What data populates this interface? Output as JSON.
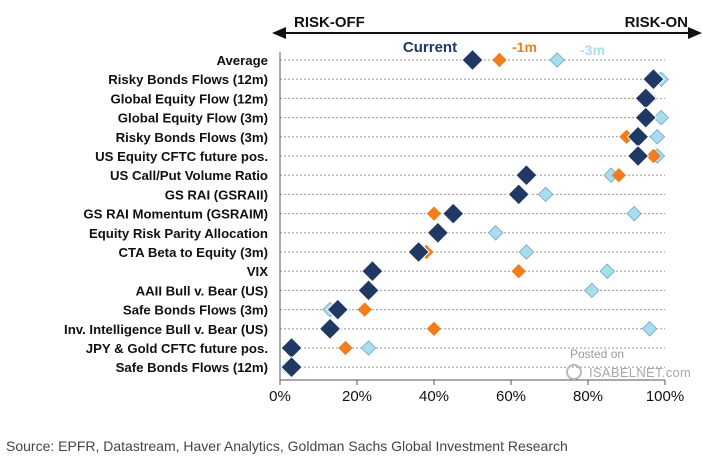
{
  "chart_data": {
    "type": "scatter",
    "orientation": "horizontal",
    "header_left": "RISK-OFF",
    "header_right": "RISK-ON",
    "x_ticks": [
      "0%",
      "20%",
      "40%",
      "60%",
      "80%",
      "100%"
    ],
    "xlim": [
      0,
      100
    ],
    "grid": true,
    "legend_placement": "top",
    "categories": [
      "Average",
      "Risky Bonds Flows (12m)",
      "Global Equity Flow (12m)",
      "Global Equity Flow (3m)",
      "Risky Bonds Flows (3m)",
      "US Equity CFTC future pos.",
      "US Call/Put Volume Ratio",
      "GS RAI (GSRAII)",
      "GS RAI Momentum (GSRAIM)",
      "Equity Risk Parity Allocation",
      "CTA Beta to Equity (3m)",
      "VIX",
      "AAII Bull v. Bear (US)",
      "Safe Bonds Flows (3m)",
      "Inv. Intelligence Bull v. Bear (US)",
      "JPY & Gold CFTC future pos.",
      "Safe Bonds Flows (12m)"
    ],
    "series": [
      {
        "name": "Current",
        "color": "#1f3864",
        "values": [
          50,
          97,
          95,
          95,
          93,
          93,
          64,
          62,
          45,
          41,
          36,
          24,
          23,
          15,
          13,
          3,
          3
        ]
      },
      {
        "name": "-1m",
        "color": "#f07d1e",
        "values": [
          57,
          97,
          95,
          95,
          90,
          97,
          88,
          63,
          40,
          41,
          38,
          62,
          24,
          22,
          40,
          17,
          3
        ]
      },
      {
        "name": "-3m",
        "color": "#a9dcec",
        "values": [
          72,
          99,
          96,
          99,
          98,
          98,
          86,
          69,
          92,
          56,
          64,
          85,
          81,
          13,
          96,
          23,
          2
        ]
      }
    ]
  },
  "source": "Source: EPFR, Datastream, Haver Analytics, Goldman Sachs Global Investment Research",
  "watermark": {
    "posted": "Posted on",
    "site": "ISABELNET.com"
  }
}
